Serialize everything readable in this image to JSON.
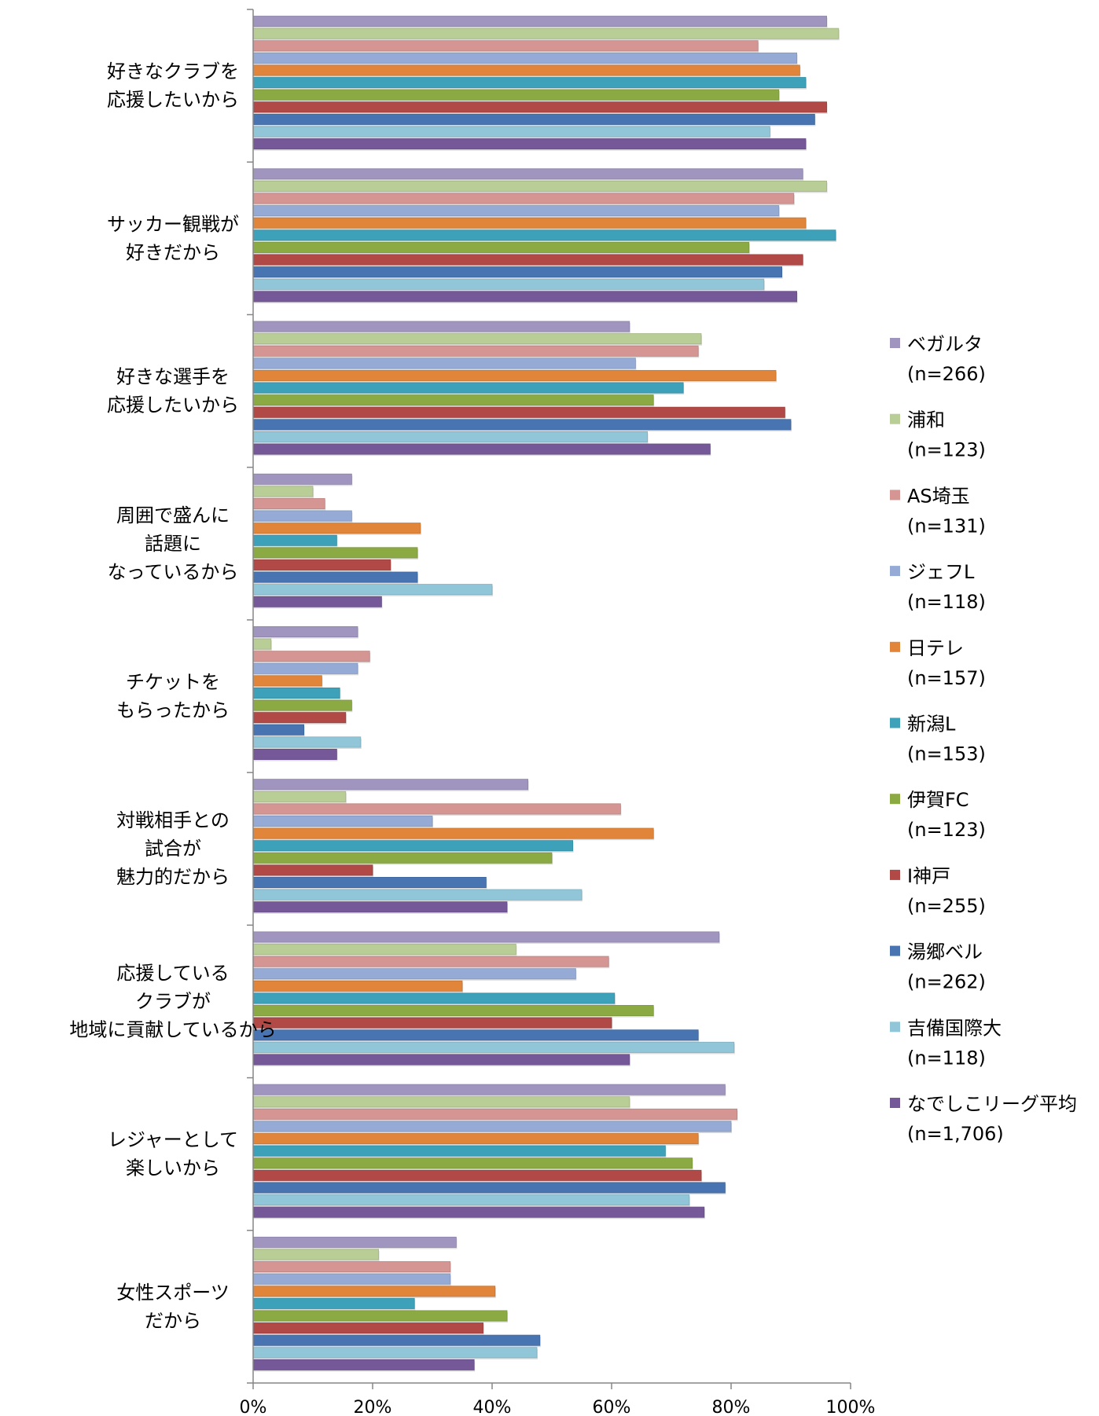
{
  "chart_data": {
    "type": "bar",
    "orientation": "horizontal",
    "categories": [
      [
        "好きなクラブを",
        "応援したいから"
      ],
      [
        "サッカー観戦が",
        "好きだから"
      ],
      [
        "好きな選手を",
        "応援したいから"
      ],
      [
        "周囲で盛んに",
        "話題に",
        "なっているから"
      ],
      [
        "チケットを",
        "もらったから"
      ],
      [
        "対戦相手との",
        "試合が",
        "魅力的だから"
      ],
      [
        "応援している",
        "クラブが",
        "地域に貢献しているから"
      ],
      [
        "レジャーとして",
        "楽しいから"
      ],
      [
        "女性スポーツ",
        "だから"
      ]
    ],
    "xticks": [
      "0%",
      "20%",
      "40%",
      "60%",
      "80%",
      "100%"
    ],
    "xlim": [
      0,
      100
    ],
    "legend_position": "right",
    "series": [
      {
        "name": "ベガルタ",
        "n": "(n=266)",
        "color": "#A095BF",
        "values": [
          96,
          92,
          63,
          16.5,
          17.5,
          46,
          78,
          79,
          34
        ]
      },
      {
        "name": "浦和",
        "n": "(n=123)",
        "color": "#B9CD96",
        "values": [
          98,
          96,
          75,
          10,
          3,
          15.5,
          44,
          63,
          21
        ]
      },
      {
        "name": "AS埼玉",
        "n": "(n=131)",
        "color": "#D59593",
        "values": [
          84.5,
          90.5,
          74.5,
          12,
          19.5,
          61.5,
          59.5,
          81,
          33
        ]
      },
      {
        "name": "ジェフL",
        "n": "(n=118)",
        "color": "#95ABD6",
        "values": [
          91,
          88,
          64,
          16.5,
          17.5,
          30,
          54,
          80,
          33
        ]
      },
      {
        "name": "日テレ",
        "n": "(n=157)",
        "color": "#E08539",
        "values": [
          91.5,
          92.5,
          87.5,
          28,
          11.5,
          67,
          35,
          74.5,
          40.5
        ]
      },
      {
        "name": "新潟L",
        "n": "(n=153)",
        "color": "#3CA1B9",
        "values": [
          92.5,
          97.5,
          72,
          14,
          14.5,
          53.5,
          60.5,
          69,
          27
        ]
      },
      {
        "name": "伊賀FC",
        "n": "(n=123)",
        "color": "#8BAA44",
        "values": [
          88,
          83,
          67,
          27.5,
          16.5,
          50,
          67,
          73.5,
          42.5
        ]
      },
      {
        "name": "I神戸",
        "n": "(n=255)",
        "color": "#B14946",
        "values": [
          96,
          92,
          89,
          23,
          15.5,
          20,
          60,
          75,
          38.5
        ]
      },
      {
        "name": "湯郷ベル",
        "n": "(n=262)",
        "color": "#4874B1",
        "values": [
          94,
          88.5,
          90,
          27.5,
          8.5,
          39,
          74.5,
          79,
          48
        ]
      },
      {
        "name": "吉備国際大",
        "n": "(n=118)",
        "color": "#91C6D8",
        "values": [
          86.5,
          85.5,
          66,
          40,
          18,
          55,
          80.5,
          73,
          47.5
        ]
      },
      {
        "name": "なでしこリーグ平均",
        "n": "(n=1,706)",
        "color": "#755898",
        "values": [
          92.5,
          91,
          76.5,
          21.5,
          14,
          42.5,
          63,
          75.5,
          37
        ]
      }
    ]
  }
}
